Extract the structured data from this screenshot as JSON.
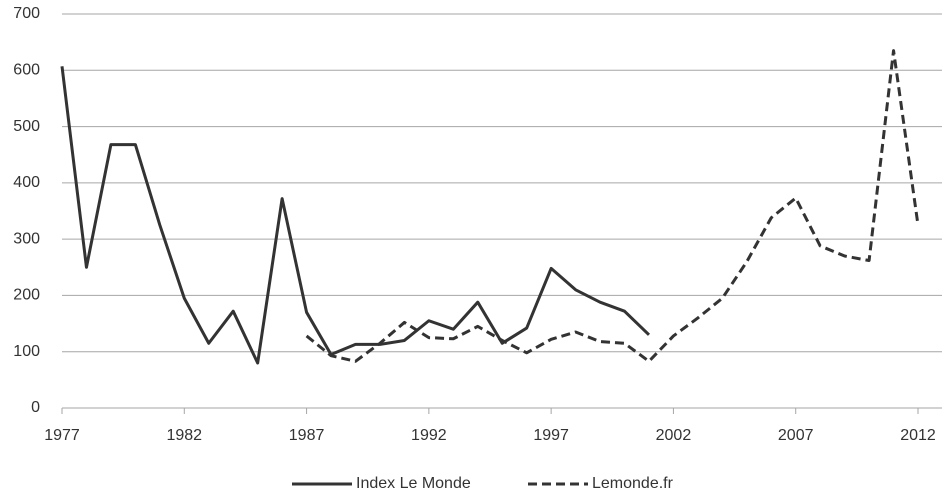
{
  "chart_data": {
    "type": "line",
    "x": [
      1977,
      1978,
      1979,
      1980,
      1981,
      1982,
      1983,
      1984,
      1985,
      1986,
      1987,
      1988,
      1989,
      1990,
      1991,
      1992,
      1993,
      1994,
      1995,
      1996,
      1997,
      1998,
      1999,
      2000,
      2001,
      2002,
      2003,
      2004,
      2005,
      2006,
      2007,
      2008,
      2009,
      2010,
      2011,
      2012
    ],
    "series": [
      {
        "name": "Index Le Monde",
        "color": "#333333",
        "style": "solid",
        "values": [
          607,
          250,
          468,
          468,
          325,
          195,
          115,
          172,
          80,
          372,
          170,
          95,
          113,
          113,
          120,
          155,
          140,
          188,
          115,
          142,
          248,
          210,
          188,
          172,
          130,
          null,
          null,
          null,
          null,
          null,
          null,
          null,
          null,
          null,
          null,
          null
        ]
      },
      {
        "name": "Lemonde.fr",
        "color": "#333333",
        "style": "dashed",
        "values": [
          null,
          null,
          null,
          null,
          null,
          null,
          null,
          null,
          null,
          null,
          128,
          93,
          83,
          115,
          152,
          125,
          123,
          145,
          120,
          98,
          122,
          135,
          118,
          115,
          83,
          128,
          160,
          195,
          260,
          338,
          373,
          288,
          270,
          262,
          635,
          325
        ]
      }
    ],
    "xlim": [
      1977,
      2012
    ],
    "xticks": [
      1977,
      1982,
      1987,
      1992,
      1997,
      2002,
      2007,
      2012
    ],
    "ylim": [
      0,
      700
    ],
    "yticks": [
      0,
      100,
      200,
      300,
      400,
      500,
      600,
      700
    ],
    "grid": true,
    "legend": "bottom"
  }
}
